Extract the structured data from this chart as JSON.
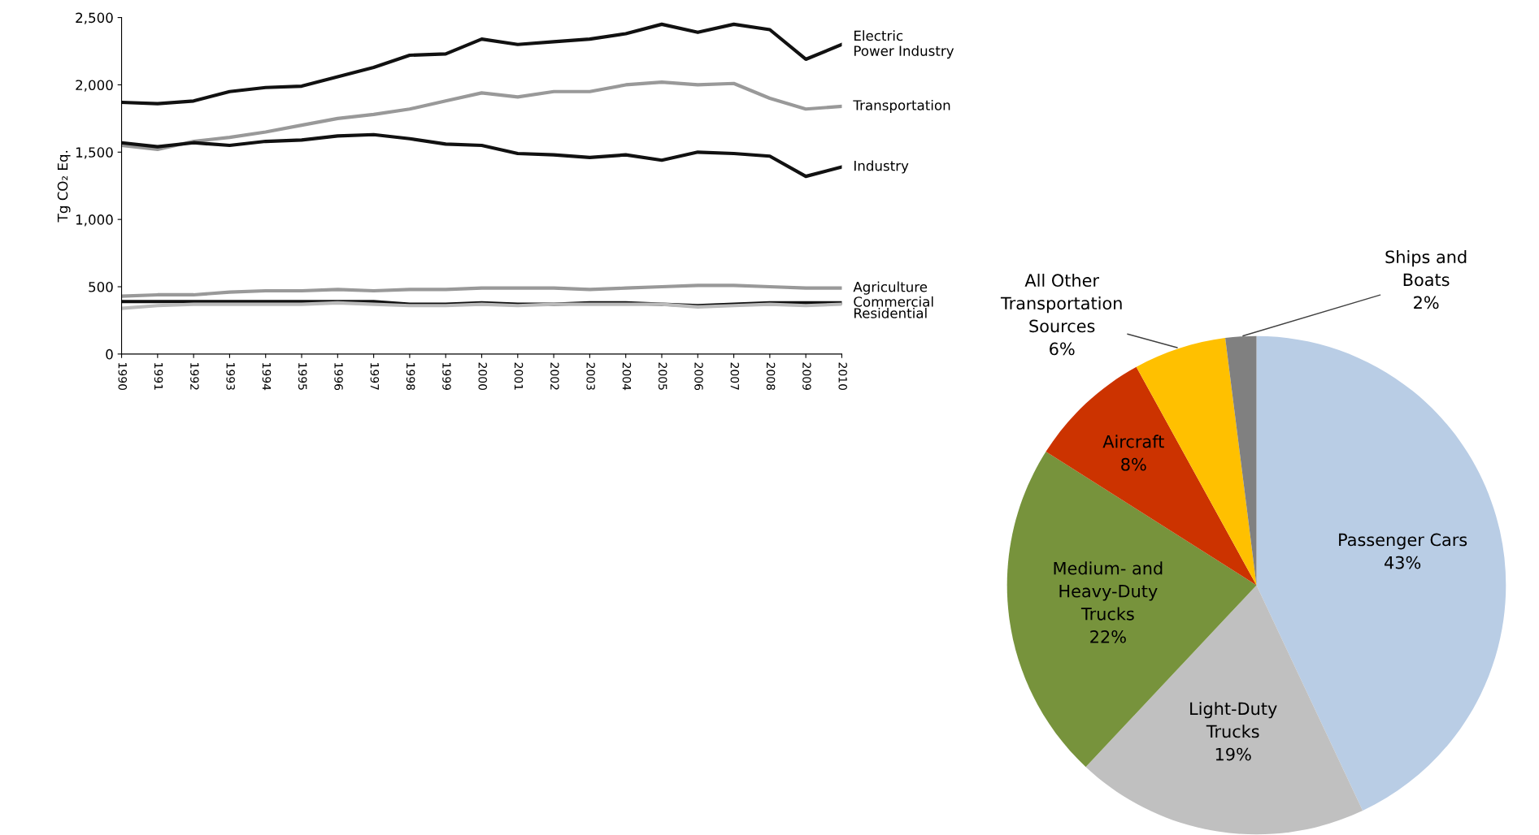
{
  "chart_data": [
    {
      "type": "line",
      "ylabel": "Tg CO₂ Eq.",
      "x": [
        1990,
        1991,
        1992,
        1993,
        1994,
        1995,
        1996,
        1997,
        1998,
        1999,
        2000,
        2001,
        2002,
        2003,
        2004,
        2005,
        2006,
        2007,
        2008,
        2009,
        2010
      ],
      "xlim": [
        1990,
        2010
      ],
      "xticks": [
        1990,
        1991,
        1992,
        1993,
        1994,
        1995,
        1996,
        1997,
        1998,
        1999,
        2000,
        2001,
        2002,
        2003,
        2004,
        2005,
        2006,
        2007,
        2008,
        2009,
        2010
      ],
      "ylim": [
        0,
        2500
      ],
      "yticks": [
        0,
        500,
        {
          "value": 1000,
          "label": "1,000"
        },
        {
          "value": 1500,
          "label": "1,500"
        },
        {
          "value": 2000,
          "label": "2,000"
        },
        {
          "value": 2500,
          "label": "2,500"
        }
      ],
      "grid": false,
      "legend": false,
      "marker": "none",
      "line_style": "solid",
      "series": [
        {
          "name": "Electric\nPower Industry",
          "color": "#111111",
          "values": [
            1870,
            1860,
            1880,
            1950,
            1980,
            1990,
            2060,
            2130,
            2220,
            2230,
            2340,
            2300,
            2320,
            2340,
            2380,
            2450,
            2390,
            2450,
            2410,
            2190,
            2300
          ]
        },
        {
          "name": "Transportation",
          "color": "#999999",
          "values": [
            1550,
            1520,
            1580,
            1610,
            1650,
            1700,
            1750,
            1780,
            1820,
            1880,
            1940,
            1910,
            1950,
            1950,
            2000,
            2020,
            2000,
            2010,
            1900,
            1820,
            1840
          ]
        },
        {
          "name": "Industry",
          "color": "#111111",
          "values": [
            1570,
            1540,
            1570,
            1550,
            1580,
            1590,
            1620,
            1630,
            1600,
            1560,
            1550,
            1490,
            1480,
            1460,
            1480,
            1440,
            1500,
            1490,
            1470,
            1320,
            1390
          ]
        },
        {
          "name": "Agriculture",
          "color": "#999999",
          "values": [
            430,
            440,
            440,
            460,
            470,
            470,
            480,
            470,
            480,
            480,
            490,
            490,
            490,
            480,
            490,
            500,
            510,
            510,
            500,
            490,
            490
          ]
        },
        {
          "name": "Commercial",
          "color": "#111111",
          "values": [
            390,
            390,
            390,
            390,
            390,
            390,
            390,
            390,
            370,
            370,
            380,
            370,
            370,
            380,
            380,
            370,
            360,
            370,
            380,
            380,
            380
          ]
        },
        {
          "name": "Residential",
          "color": "#bbbbbb",
          "values": [
            340,
            360,
            370,
            370,
            370,
            370,
            380,
            370,
            360,
            360,
            370,
            360,
            370,
            370,
            370,
            370,
            350,
            360,
            370,
            360,
            370
          ]
        }
      ]
    },
    {
      "type": "pie",
      "categories": [
        "Passenger Cars",
        "Light-Duty\nTrucks",
        "Medium- and\nHeavy-Duty\nTrucks",
        "Aircraft",
        "All Other\nTransportation\nSources",
        "Ships and\nBoats"
      ],
      "values": [
        43,
        19,
        22,
        8,
        6,
        2
      ],
      "value_labels": [
        "43%",
        "19%",
        "22%",
        "8%",
        "6%",
        "2%"
      ],
      "colors": [
        "#b9cde5",
        "#c0c0c0",
        "#77933c",
        "#cc3300",
        "#ffc000",
        "#808080"
      ]
    }
  ]
}
